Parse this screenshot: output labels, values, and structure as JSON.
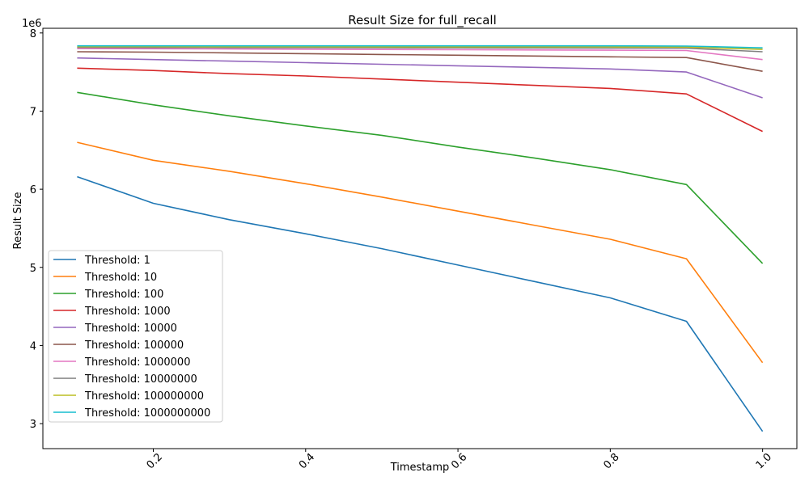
{
  "chart_data": {
    "type": "line",
    "title": "Result Size for full_recall",
    "xlabel": "Timestamp",
    "ylabel": "Result Size",
    "y_offset_text": "1e6",
    "y_scale": 1000000,
    "xlim": [
      0.055,
      1.045
    ],
    "ylim": [
      2680000,
      8060000
    ],
    "x_ticks": [
      0.2,
      0.4,
      0.6,
      0.8,
      1.0
    ],
    "x_tick_labels": [
      "0.2",
      "0.4",
      "0.6",
      "0.8",
      "1.0"
    ],
    "y_ticks": [
      3,
      4,
      5,
      6,
      7,
      8
    ],
    "y_tick_labels": [
      "3",
      "4",
      "5",
      "6",
      "7",
      "8"
    ],
    "x_tick_rotation": 45,
    "grid": false,
    "legend_position": "lower-left",
    "x": [
      0.1,
      0.2,
      0.3,
      0.4,
      0.5,
      0.6,
      0.7,
      0.8,
      0.9,
      1.0
    ],
    "series": [
      {
        "name": "Threshold: 1",
        "color": "#1f77b4",
        "values": [
          6160000,
          5820000,
          5610000,
          5430000,
          5240000,
          5030000,
          4820000,
          4610000,
          4310000,
          2900000
        ]
      },
      {
        "name": "Threshold: 10",
        "color": "#ff7f0e",
        "values": [
          6600000,
          6370000,
          6230000,
          6070000,
          5900000,
          5720000,
          5540000,
          5360000,
          5110000,
          3780000
        ]
      },
      {
        "name": "Threshold: 100",
        "color": "#2ca02c",
        "values": [
          7240000,
          7080000,
          6940000,
          6810000,
          6690000,
          6540000,
          6400000,
          6250000,
          6060000,
          5050000
        ]
      },
      {
        "name": "Threshold: 1000",
        "color": "#d62728",
        "values": [
          7550000,
          7520000,
          7480000,
          7450000,
          7410000,
          7370000,
          7330000,
          7290000,
          7220000,
          6740000
        ]
      },
      {
        "name": "Threshold: 10000",
        "color": "#9467bd",
        "values": [
          7680000,
          7660000,
          7640000,
          7620000,
          7600000,
          7580000,
          7560000,
          7540000,
          7500000,
          7170000
        ]
      },
      {
        "name": "Threshold: 100000",
        "color": "#8c564b",
        "values": [
          7760000,
          7755000,
          7745000,
          7735000,
          7725000,
          7715000,
          7705000,
          7695000,
          7685000,
          7510000
        ]
      },
      {
        "name": "Threshold: 1000000",
        "color": "#e377c2",
        "values": [
          7800000,
          7798000,
          7795000,
          7792000,
          7789000,
          7786000,
          7783000,
          7780000,
          7775000,
          7660000
        ]
      },
      {
        "name": "Threshold: 10000000",
        "color": "#7f7f7f",
        "values": [
          7815000,
          7814000,
          7813000,
          7812000,
          7811000,
          7810000,
          7809000,
          7808000,
          7805000,
          7760000
        ]
      },
      {
        "name": "Threshold: 100000000",
        "color": "#bcbd22",
        "values": [
          7825000,
          7825000,
          7824000,
          7824000,
          7823000,
          7823000,
          7822000,
          7822000,
          7820000,
          7790000
        ]
      },
      {
        "name": "Threshold: 1000000000",
        "color": "#17becf",
        "values": [
          7835000,
          7835000,
          7835000,
          7835000,
          7835000,
          7835000,
          7835000,
          7835000,
          7832000,
          7810000
        ]
      }
    ]
  }
}
